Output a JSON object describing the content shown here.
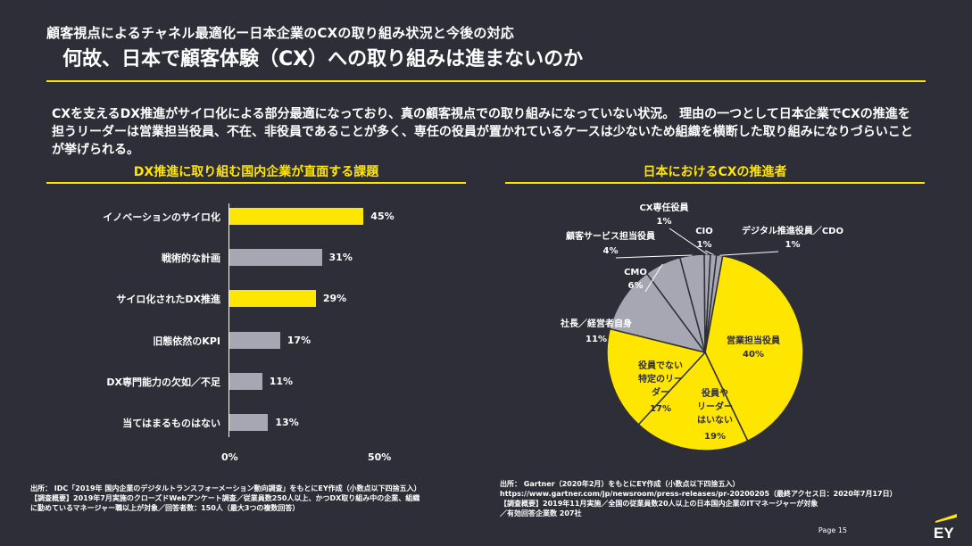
{
  "header": {
    "title": "顧客視点によるチャネル最適化ー日本企業のCXの取り組み状況と今後の対応",
    "subtitle": "何故、日本で顧客体験（CX）への取り組みは進まないのか"
  },
  "intro": "CXを支えるDX推進がサイロ化による部分最適になっており、真の顧客視点での取り組みになっていない状況。 理由の一つとして日本企業でCXの推進を担うリーダーは営業担当役員、不在、非役員であることが多く、専任の役員が置かれているケースは少ないため組織を横断した取り組みになりづらいことが挙げられる。",
  "colors": {
    "accent": "#ffe600",
    "grey": "#a7a6b3",
    "background": "#2e2e38"
  },
  "chart_data": [
    {
      "type": "bar",
      "orientation": "horizontal",
      "title": "DX推進に取り組む国内企業が直面する課題",
      "categories": [
        "イノベーションのサイロ化",
        "戦術的な計画",
        "サイロ化されたDX推進",
        "旧態依然のKPI",
        "DX専門能力の欠如／不足",
        "当てはまるものはない"
      ],
      "values": [
        45,
        31,
        29,
        17,
        11,
        13
      ],
      "value_labels": [
        "45%",
        "31%",
        "29%",
        "17%",
        "11%",
        "13%"
      ],
      "bar_colors": [
        "#ffe600",
        "#a7a6b3",
        "#ffe600",
        "#a7a6b3",
        "#a7a6b3",
        "#a7a6b3"
      ],
      "xlim": [
        0,
        50
      ],
      "xticks": [
        "0%",
        "50%"
      ]
    },
    {
      "type": "pie",
      "title": "日本におけるCXの推進者",
      "slices": [
        {
          "label": "営業担当役員",
          "value": 40,
          "value_label": "40%",
          "color": "#ffe600"
        },
        {
          "label": "役員や リーダー はいない",
          "value": 19,
          "value_label": "19%",
          "color": "#ffe600"
        },
        {
          "label": "役員でない 特定のリー ダー",
          "value": 17,
          "value_label": "17%",
          "color": "#ffe600"
        },
        {
          "label": "社長／経営者自身",
          "value": 11,
          "value_label": "11%",
          "color": "#a7a6b3"
        },
        {
          "label": "CMO",
          "value": 6,
          "value_label": "6%",
          "color": "#a7a6b3"
        },
        {
          "label": "顧客サービス担当役員",
          "value": 4,
          "value_label": "4%",
          "color": "#a7a6b3"
        },
        {
          "label": "CX専任役員",
          "value": 1,
          "value_label": "1%",
          "color": "#a7a6b3"
        },
        {
          "label": "CIO",
          "value": 1,
          "value_label": "1%",
          "color": "#a7a6b3"
        },
        {
          "label": "デジタル推進役員／CDO",
          "value": 1,
          "value_label": "1%",
          "color": "#a7a6b3"
        }
      ]
    }
  ],
  "source_left": {
    "line1": "出所： IDC「2019年 国内企業のデジタルトランスフォーメーション動向調査」をもとにEY作成（小数点以下四捨五入）",
    "line2": "【調査概要】2019年7月実施のクローズドWebアンケート調査／従業員数250人以上、かつDX取り組み中の企業、組織",
    "line3": "に勤めているマネージャー職以上が対象／回答者数：150人（最大3つの複数回答）"
  },
  "source_right": {
    "line1": "出所： Gartner（2020年2月）をもとにEY作成（小数点以下四捨五入）",
    "line2": "https://www.gartner.com/jp/newsroom/press-releases/pr-20200205（最終アクセス日：2020年7月17日）",
    "line3": "【調査概要】2019年11月実施／全国の従業員数20人以上の日本国内企業のITマネージャーが対象",
    "line4": "／有効回答企業数 207社"
  },
  "footer": {
    "page": "Page 15",
    "logo": "EY"
  }
}
